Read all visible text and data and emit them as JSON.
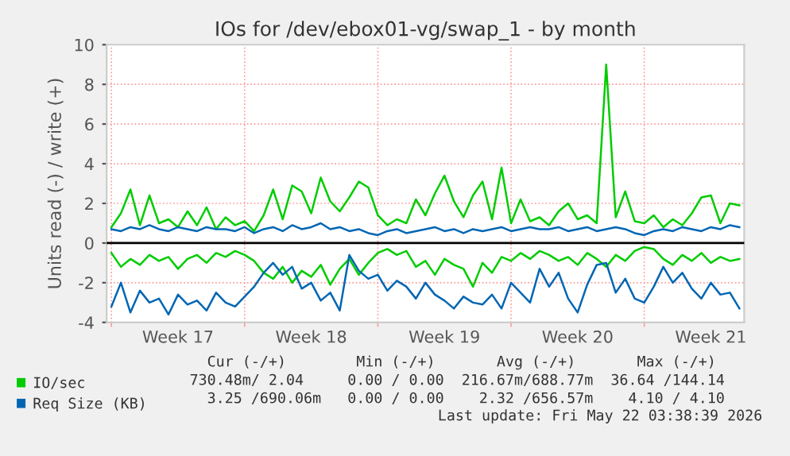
{
  "chart_data": {
    "type": "line",
    "title": "IOs for /dev/ebox01-vg/swap_1 - by month",
    "ylabel": "Units read (-) / write (+)",
    "categories": [
      null,
      null,
      null,
      null,
      null,
      null,
      null,
      "Week 17",
      null,
      null,
      null,
      null,
      null,
      null,
      null,
      null,
      null,
      null,
      null,
      null,
      null,
      "Week 18",
      null,
      null,
      null,
      null,
      null,
      null,
      null,
      null,
      null,
      null,
      null,
      null,
      null,
      "Week 19",
      null,
      null,
      null,
      null,
      null,
      null,
      null,
      null,
      null,
      null,
      null,
      null,
      null,
      "Week 20",
      null,
      null,
      null,
      null,
      null,
      null,
      null,
      null,
      null,
      null,
      null,
      null,
      null,
      "Week 21",
      null,
      null,
      null
    ],
    "ylim": [
      -4,
      10
    ],
    "yticks": [
      -4,
      -2,
      0,
      2,
      4,
      6,
      8,
      10
    ],
    "grid": true,
    "legend": "bottom left",
    "marker": "none",
    "line_style": "solid",
    "ref_lines": [
      {
        "axis": "y",
        "value": 0,
        "color": "#000000"
      }
    ],
    "series": [
      {
        "name": "IO/sec",
        "color": "#00cc00",
        "values": [
          0.8,
          1.5,
          2.7,
          0.9,
          2.4,
          1.0,
          1.2,
          0.8,
          1.6,
          0.9,
          1.8,
          0.7,
          1.3,
          0.9,
          1.1,
          0.6,
          1.4,
          2.7,
          1.2,
          2.9,
          2.6,
          1.5,
          3.3,
          2.1,
          1.6,
          2.3,
          3.1,
          2.8,
          1.4,
          0.9,
          1.2,
          1.0,
          2.2,
          1.4,
          2.5,
          3.4,
          2.1,
          1.3,
          2.4,
          3.1,
          1.2,
          3.8,
          1.0,
          2.2,
          1.1,
          1.3,
          0.9,
          1.6,
          2.0,
          1.2,
          1.4,
          1.0,
          9.0,
          1.3,
          2.6,
          1.1,
          1.0,
          1.4,
          0.8,
          1.2,
          0.9,
          1.5,
          2.3,
          2.4,
          1.0,
          2.0,
          1.9
        ]
      },
      {
        "color": "#00cc00",
        "values": [
          -0.5,
          -1.2,
          -0.8,
          -1.1,
          -0.6,
          -0.9,
          -0.7,
          -1.3,
          -0.8,
          -0.6,
          -1.0,
          -0.5,
          -0.7,
          -0.4,
          -0.6,
          -0.9,
          -1.5,
          -1.8,
          -1.2,
          -2.0,
          -1.4,
          -1.7,
          -1.1,
          -2.1,
          -1.3,
          -0.8,
          -1.6,
          -1.0,
          -0.5,
          -0.3,
          -0.6,
          -0.4,
          -1.2,
          -0.9,
          -1.6,
          -0.8,
          -1.1,
          -1.3,
          -2.2,
          -1.0,
          -1.5,
          -0.7,
          -0.9,
          -0.5,
          -0.8,
          -0.4,
          -0.6,
          -0.9,
          -0.7,
          -1.1,
          -0.5,
          -0.8,
          -1.2,
          -0.6,
          -0.9,
          -0.4,
          -0.2,
          -0.3,
          -0.8,
          -1.1,
          -0.6,
          -0.9,
          -0.5,
          -1.0,
          -0.7,
          -0.9,
          -0.8
        ]
      },
      {
        "name": "Req Size (KB)",
        "color": "#0066b3",
        "values": [
          0.7,
          0.6,
          0.8,
          0.7,
          0.9,
          0.7,
          0.6,
          0.8,
          0.7,
          0.6,
          0.8,
          0.7,
          0.7,
          0.6,
          0.8,
          0.5,
          0.7,
          0.8,
          0.6,
          0.9,
          0.7,
          0.8,
          1.0,
          0.7,
          0.8,
          0.6,
          0.7,
          0.5,
          0.4,
          0.6,
          0.7,
          0.5,
          0.6,
          0.7,
          0.8,
          0.6,
          0.7,
          0.5,
          0.7,
          0.6,
          0.7,
          0.8,
          0.6,
          0.7,
          0.8,
          0.7,
          0.7,
          0.8,
          0.6,
          0.7,
          0.8,
          0.6,
          0.7,
          0.8,
          0.7,
          0.5,
          0.4,
          0.6,
          0.7,
          0.6,
          0.8,
          0.7,
          0.6,
          0.8,
          0.7,
          0.9,
          0.8
        ]
      },
      {
        "color": "#0066b3",
        "values": [
          -3.2,
          -2.0,
          -3.5,
          -2.4,
          -3.0,
          -2.8,
          -3.6,
          -2.6,
          -3.1,
          -2.9,
          -3.4,
          -2.5,
          -3.0,
          -3.2,
          -2.7,
          -2.2,
          -1.5,
          -1.0,
          -1.6,
          -1.2,
          -2.3,
          -2.0,
          -2.9,
          -2.5,
          -3.4,
          -0.6,
          -1.4,
          -1.8,
          -1.6,
          -2.4,
          -1.9,
          -2.2,
          -2.8,
          -2.0,
          -2.6,
          -2.9,
          -3.3,
          -2.7,
          -3.0,
          -3.1,
          -2.6,
          -3.3,
          -2.0,
          -2.5,
          -3.0,
          -1.3,
          -2.2,
          -1.5,
          -2.8,
          -3.5,
          -2.1,
          -1.1,
          -1.0,
          -2.5,
          -1.8,
          -2.8,
          -3.0,
          -2.2,
          -1.2,
          -2.0,
          -1.5,
          -2.3,
          -2.8,
          -2.0,
          -2.6,
          -2.5,
          -3.3
        ]
      }
    ],
    "annotations": [
      "  Cur (-/+)        Min (-/+)       Avg (-/+)       Max (-/+)",
      "730.48m/ 2.04     0.00 / 0.00  216.67m/688.77m  36.64 /144.14",
      "  3.25 /690.06m   0.00 / 0.00    2.32 /656.57m    4.10 / 4.10",
      "Last update: Fri May 22 03:38:39 2026"
    ]
  }
}
